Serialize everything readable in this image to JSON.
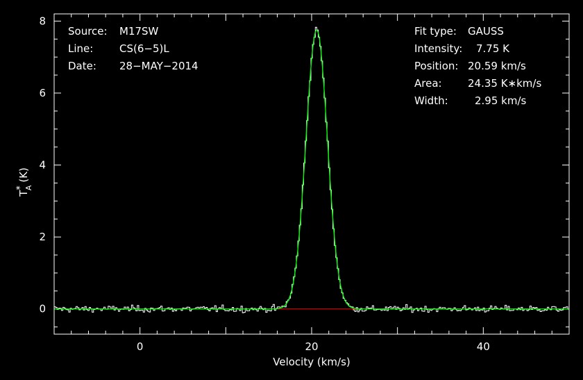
{
  "chart_data": {
    "type": "line",
    "xlabel": "Velocity (km/s)",
    "ylabel_main": "T",
    "ylabel_sub": "A",
    "ylabel_sup": "*",
    "ylabel_unit": "(K)",
    "xlim": [
      -10,
      50
    ],
    "ylim": [
      -0.7,
      8.2
    ],
    "x_ticks": [
      0,
      20,
      40
    ],
    "y_ticks": [
      0,
      2,
      4,
      6,
      8
    ],
    "info_left": [
      {
        "key": "Source:",
        "value": "M17SW"
      },
      {
        "key": "Line:",
        "value": "CS(6−5)L"
      },
      {
        "key": "Date:",
        "value": "28−MAY−2014"
      }
    ],
    "info_right": [
      {
        "key": "Fit type:",
        "value": "GAUSS"
      },
      {
        "key": "Intensity:",
        "value": "7.75 K"
      },
      {
        "key": "Position:",
        "value": "20.59 km/s"
      },
      {
        "key": "Area:",
        "value": "24.35 K∗km/s"
      },
      {
        "key": "Width:",
        "value": "2.95 km/s"
      }
    ],
    "fit": {
      "amplitude": 7.75,
      "center": 20.59,
      "fwhm": 2.95
    },
    "baseline": {
      "x": [
        16.0,
        25.2
      ],
      "y": [
        0,
        0
      ]
    },
    "noise_sigma": 0.07,
    "colors": {
      "spectrum": "#ffffff",
      "fit": "#00ff00",
      "baseline": "#ff0000",
      "axes": "#ffffff",
      "background": "#000000"
    }
  }
}
